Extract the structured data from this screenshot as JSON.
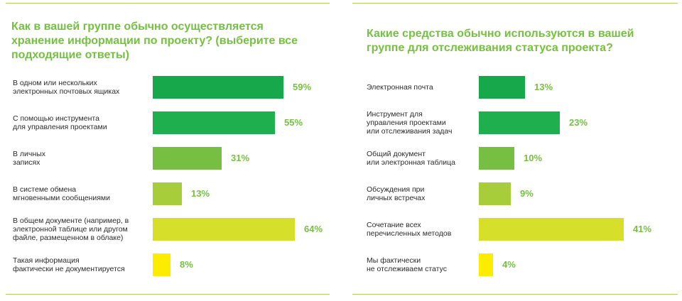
{
  "chart_data": [
    {
      "type": "bar",
      "orientation": "horizontal",
      "title": "Как в вашей группе обычно осуществляется\nхранение информации по проекту? (выберите все\nподходящие ответы)",
      "categories": [
        "В одном или нескольких\nэлектронных почтовых ящиках",
        "С помощью инструмента\nдля управления проектами",
        "В личных\nзаписях",
        "В системе обмена\nмгновенными сообщениями",
        "В общем документе (например, в\nэлектронной таблице или другом\nфайле, размещенном в облаке)",
        "Такая информация\nфактически не документируется"
      ],
      "values": [
        59,
        55,
        31,
        13,
        64,
        8
      ],
      "value_labels": [
        "59%",
        "55%",
        "31%",
        "13%",
        "64%",
        "8%"
      ],
      "colors": [
        "#18a84c",
        "#1faf4f",
        "#77bf43",
        "#a8cd3b",
        "#d6df2a",
        "#fbec00"
      ],
      "xlim": [
        0,
        64
      ]
    },
    {
      "type": "bar",
      "orientation": "horizontal",
      "title": "Какие средства обычно используются в вашей\nгруппе для отслеживания статуса проекта?",
      "categories": [
        "Электронная почта",
        "Инструмент для\nуправления проектами\nили отслеживания задач",
        "Общий документ\nили электронная таблица",
        "Обсуждения при\nличных встречах",
        "Сочетание всех\nперечисленных методов",
        "Мы фактически\nне отслеживаем статус"
      ],
      "values": [
        13,
        23,
        10,
        9,
        41,
        4
      ],
      "value_labels": [
        "13%",
        "23%",
        "10%",
        "9%",
        "41%",
        "4%"
      ],
      "colors": [
        "#18a84c",
        "#1faf4f",
        "#77bf43",
        "#a8cd3b",
        "#d6df2a",
        "#fbec00"
      ],
      "xlim": [
        0,
        41
      ]
    }
  ]
}
